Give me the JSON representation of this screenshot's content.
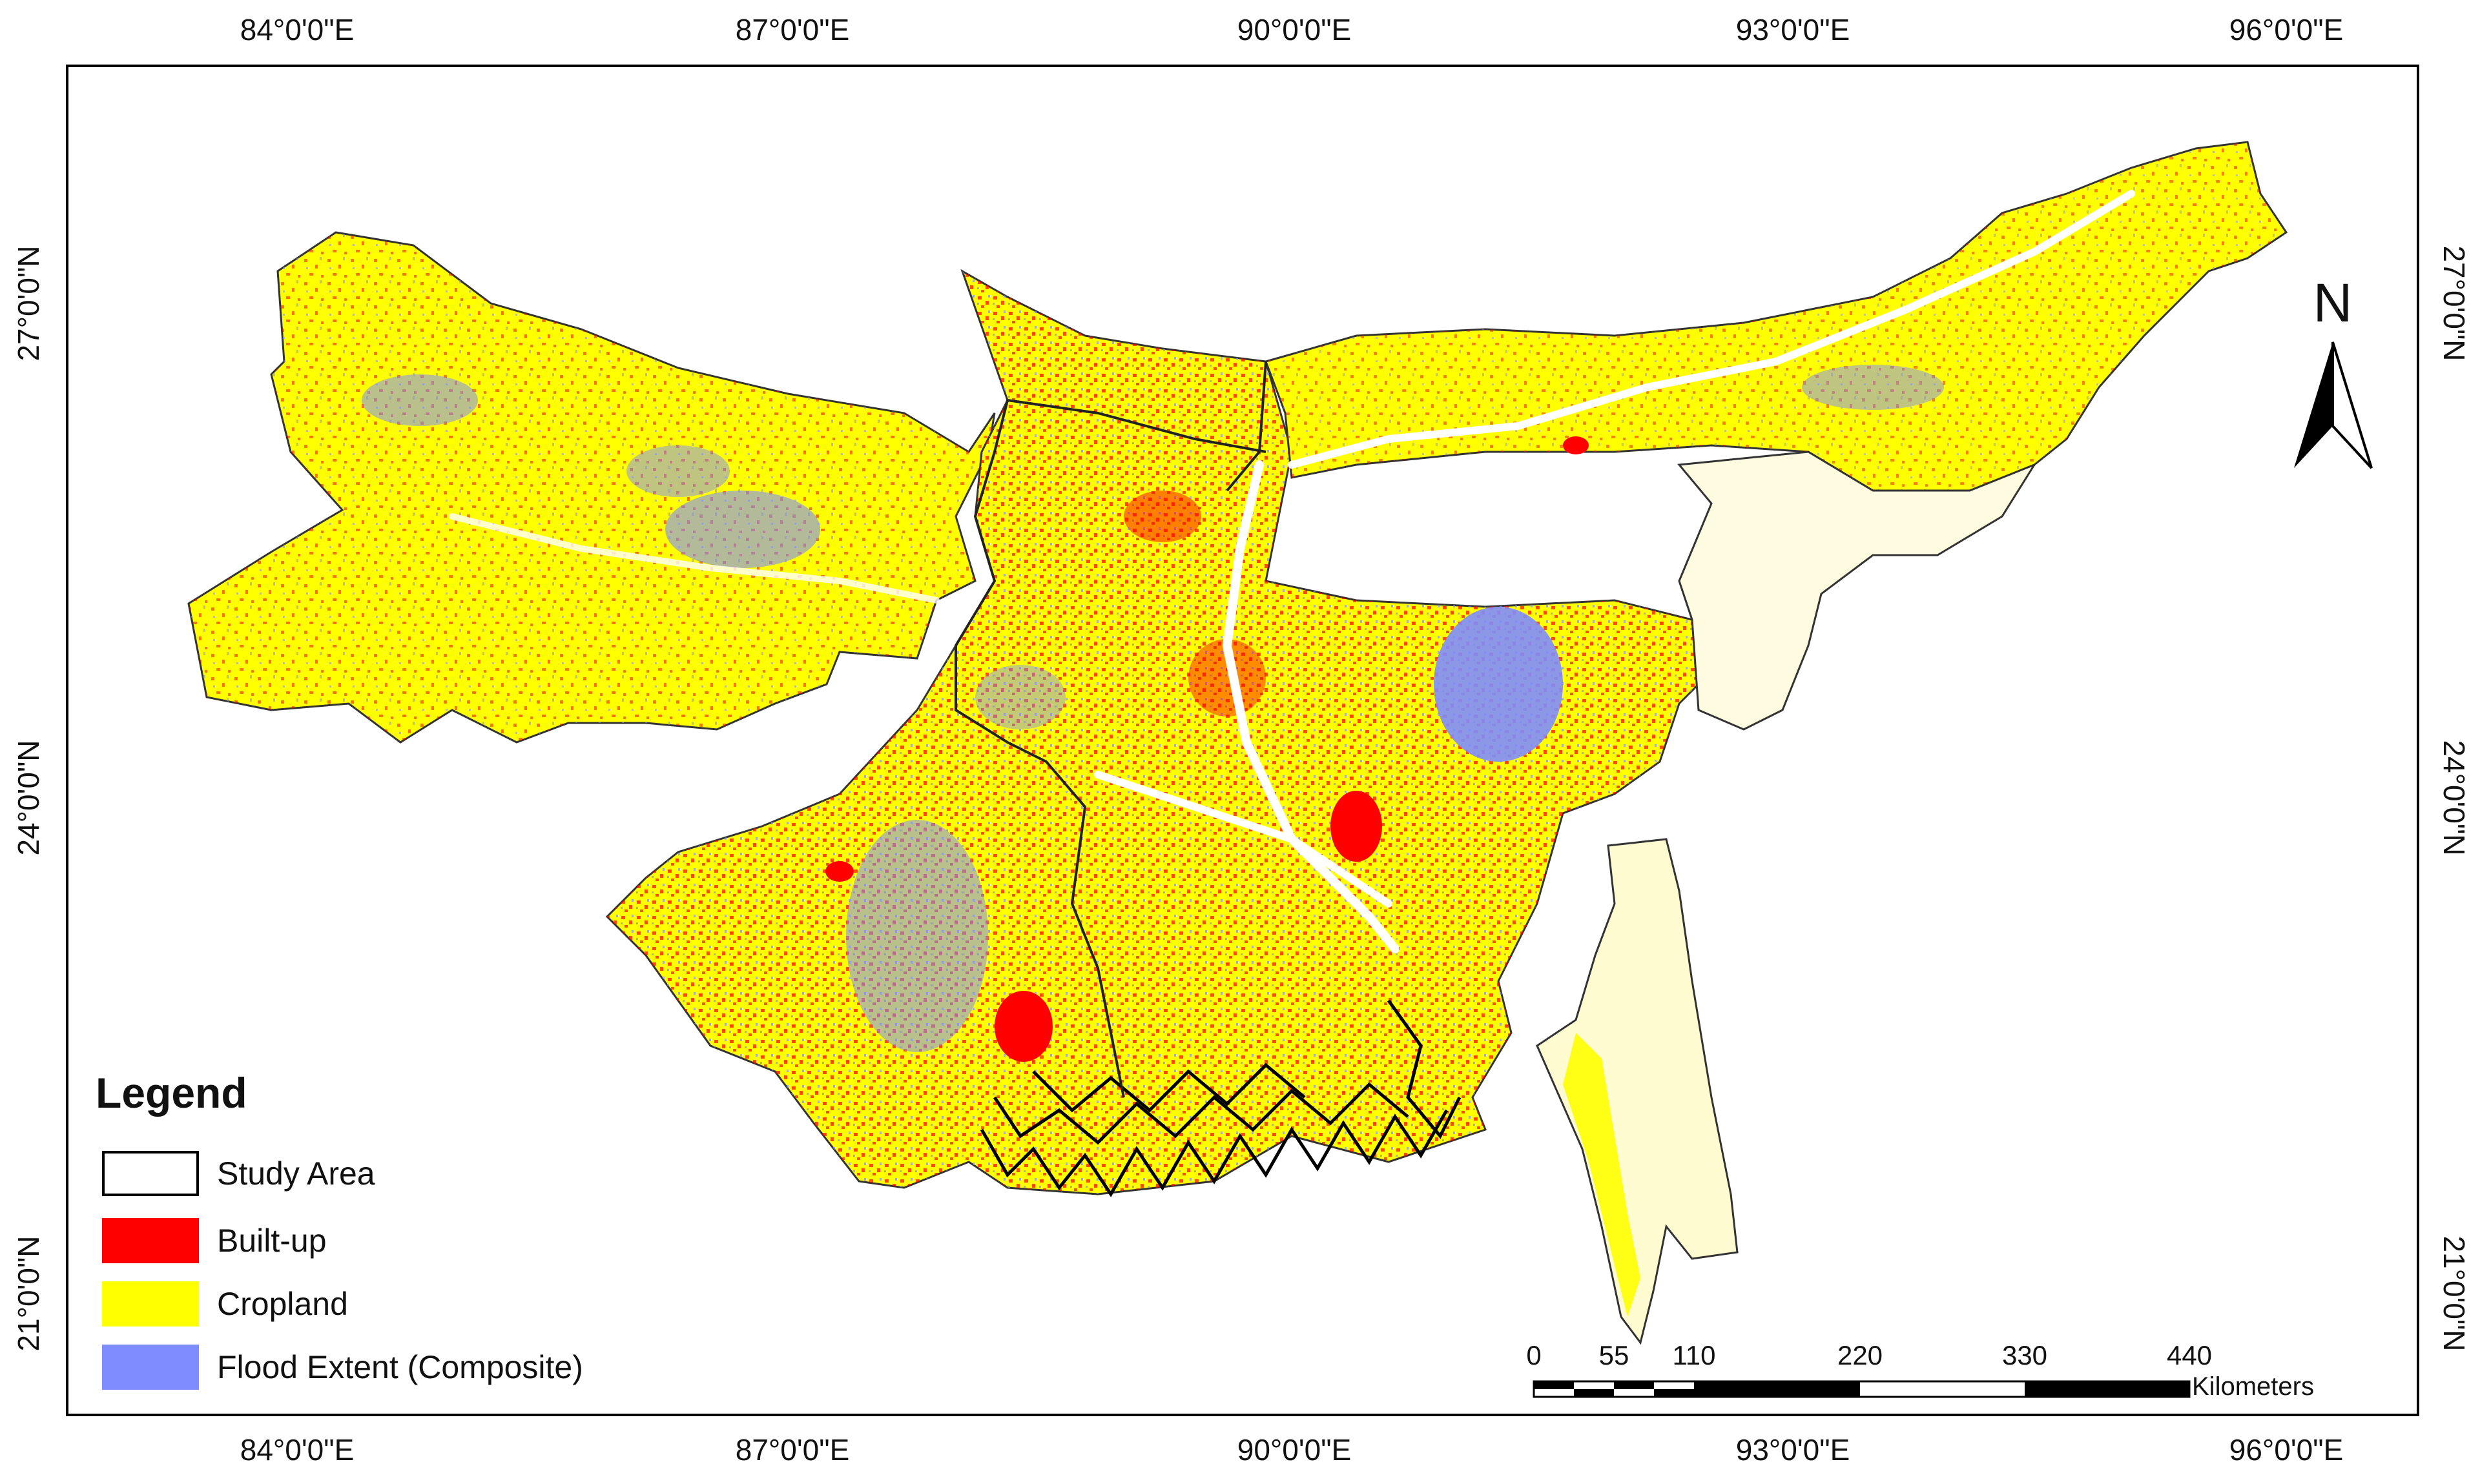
{
  "map": {
    "lon_labels": [
      "84°0'0\"E",
      "87°0'0\"E",
      "90°0'0\"E",
      "93°0'0\"E",
      "96°0'0\"E"
    ],
    "lat_labels": [
      "27°0'0\"N",
      "24°0'0\"N",
      "21°0'0\"N"
    ],
    "north_arrow": {
      "label": "N",
      "icon": "north-arrow-icon"
    },
    "legend": {
      "title": "Legend",
      "items": [
        {
          "label": "Study Area",
          "color": "#ffffff",
          "outline": "#000000"
        },
        {
          "label": "Built-up",
          "color": "#ff0000"
        },
        {
          "label": "Cropland",
          "color": "#ffff00"
        },
        {
          "label": "Flood Extent (Composite)",
          "color": "#7f8cff"
        }
      ]
    },
    "scale_bar": {
      "ticks": [
        "0",
        "55",
        "110",
        "220",
        "330",
        "440"
      ],
      "unit": "Kilometers"
    },
    "colors": {
      "built_up": "#ff0000",
      "cropland": "#ffff00",
      "flood": "#7f8cff",
      "river": "#ffffff",
      "boundary": "#000000"
    }
  }
}
